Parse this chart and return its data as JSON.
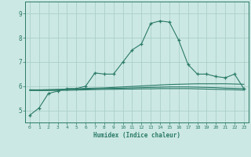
{
  "x": [
    0,
    1,
    2,
    3,
    4,
    5,
    6,
    7,
    8,
    9,
    10,
    11,
    12,
    13,
    14,
    15,
    16,
    17,
    18,
    19,
    20,
    21,
    22,
    23
  ],
  "line1": [
    4.8,
    5.1,
    5.7,
    5.8,
    5.9,
    5.9,
    6.0,
    6.55,
    6.5,
    6.5,
    7.0,
    7.5,
    7.75,
    8.6,
    8.7,
    8.65,
    7.9,
    6.9,
    6.5,
    6.5,
    6.4,
    6.35,
    6.5,
    5.9
  ],
  "line2": [
    5.85,
    5.85,
    5.86,
    5.87,
    5.88,
    5.89,
    5.91,
    5.92,
    5.93,
    5.95,
    5.97,
    5.99,
    6.01,
    6.03,
    6.05,
    6.07,
    6.08,
    6.09,
    6.1,
    6.1,
    6.1,
    6.1,
    6.09,
    6.08
  ],
  "line3": [
    5.85,
    5.84,
    5.84,
    5.85,
    5.86,
    5.87,
    5.88,
    5.89,
    5.9,
    5.91,
    5.92,
    5.93,
    5.94,
    5.95,
    5.96,
    5.97,
    5.97,
    5.97,
    5.96,
    5.95,
    5.94,
    5.92,
    5.91,
    5.9
  ],
  "line4": [
    5.82,
    5.82,
    5.82,
    5.83,
    5.83,
    5.84,
    5.85,
    5.86,
    5.87,
    5.87,
    5.88,
    5.88,
    5.89,
    5.89,
    5.9,
    5.9,
    5.9,
    5.9,
    5.89,
    5.88,
    5.87,
    5.86,
    5.85,
    5.84
  ],
  "line_color": "#2a7a68",
  "bg_color": "#cce8e4",
  "grid_color": "#aacfca",
  "xlabel": "Humidex (Indice chaleur)",
  "ylim": [
    4.5,
    9.5
  ],
  "xlim": [
    -0.5,
    23.5
  ],
  "yticks": [
    5,
    6,
    7,
    8,
    9
  ],
  "xticks": [
    0,
    1,
    2,
    3,
    4,
    5,
    6,
    7,
    8,
    9,
    10,
    11,
    12,
    13,
    14,
    15,
    16,
    17,
    18,
    19,
    20,
    21,
    22,
    23
  ]
}
